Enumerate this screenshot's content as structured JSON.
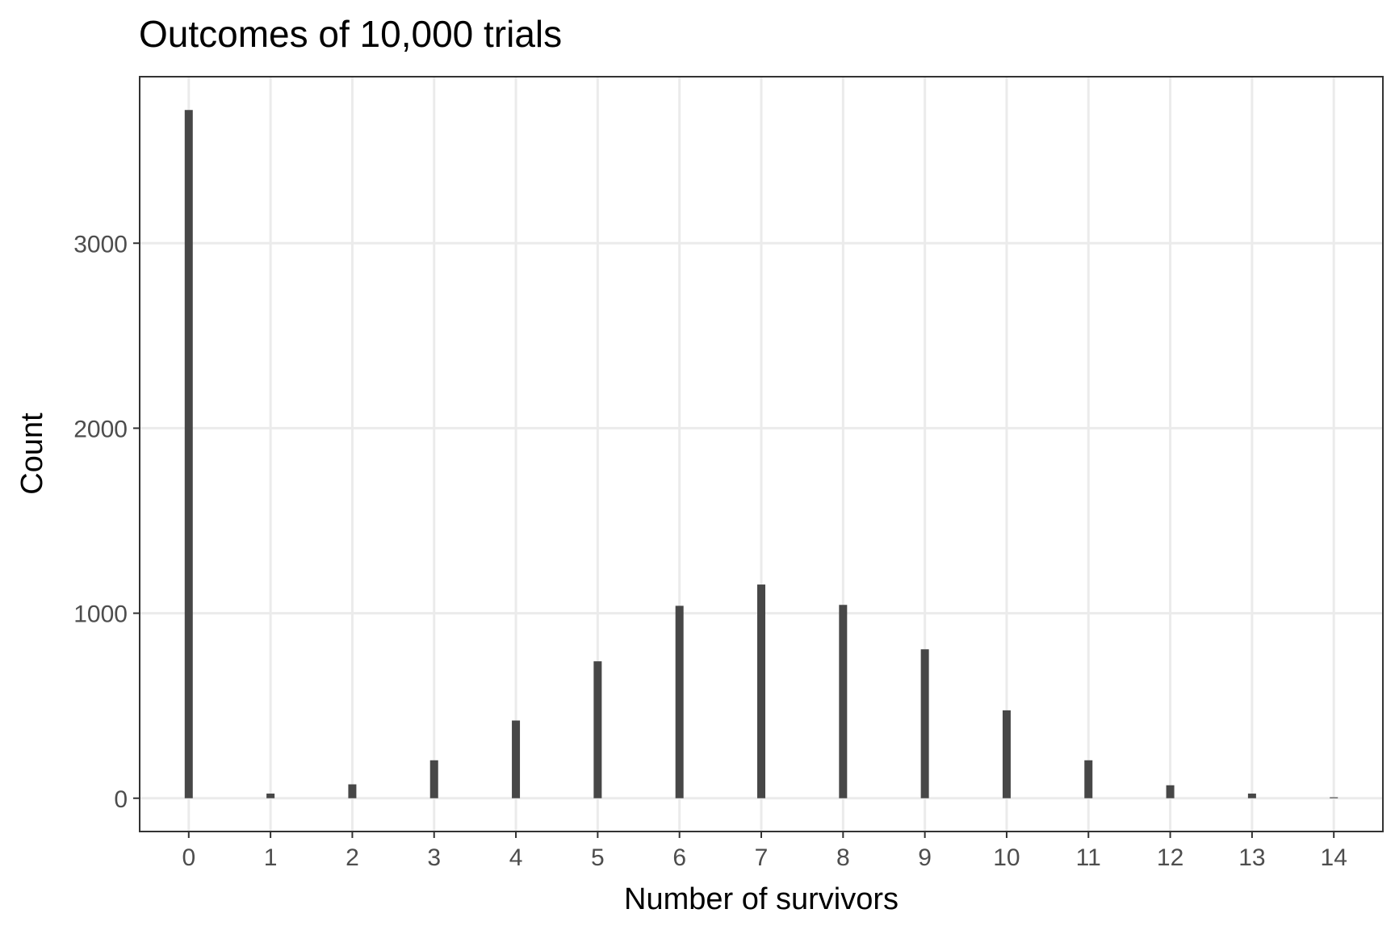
{
  "chart_data": {
    "type": "bar",
    "title": "Outcomes of 10,000 trials",
    "xlabel": "Number of survivors",
    "ylabel": "Count",
    "categories": [
      "0",
      "1",
      "2",
      "3",
      "4",
      "5",
      "6",
      "7",
      "8",
      "9",
      "10",
      "11",
      "12",
      "13",
      "14"
    ],
    "values": [
      3720,
      25,
      75,
      205,
      420,
      740,
      1040,
      1155,
      1045,
      805,
      475,
      205,
      70,
      25,
      5
    ],
    "yticks": [
      0,
      1000,
      2000,
      3000
    ],
    "ylim": [
      -180,
      3900
    ],
    "xlim": [
      -0.6,
      14.6
    ],
    "grid": true,
    "legend": "none",
    "bar_color": "#474747",
    "grid_color": "#ebebeb",
    "border_color": "#333333"
  }
}
